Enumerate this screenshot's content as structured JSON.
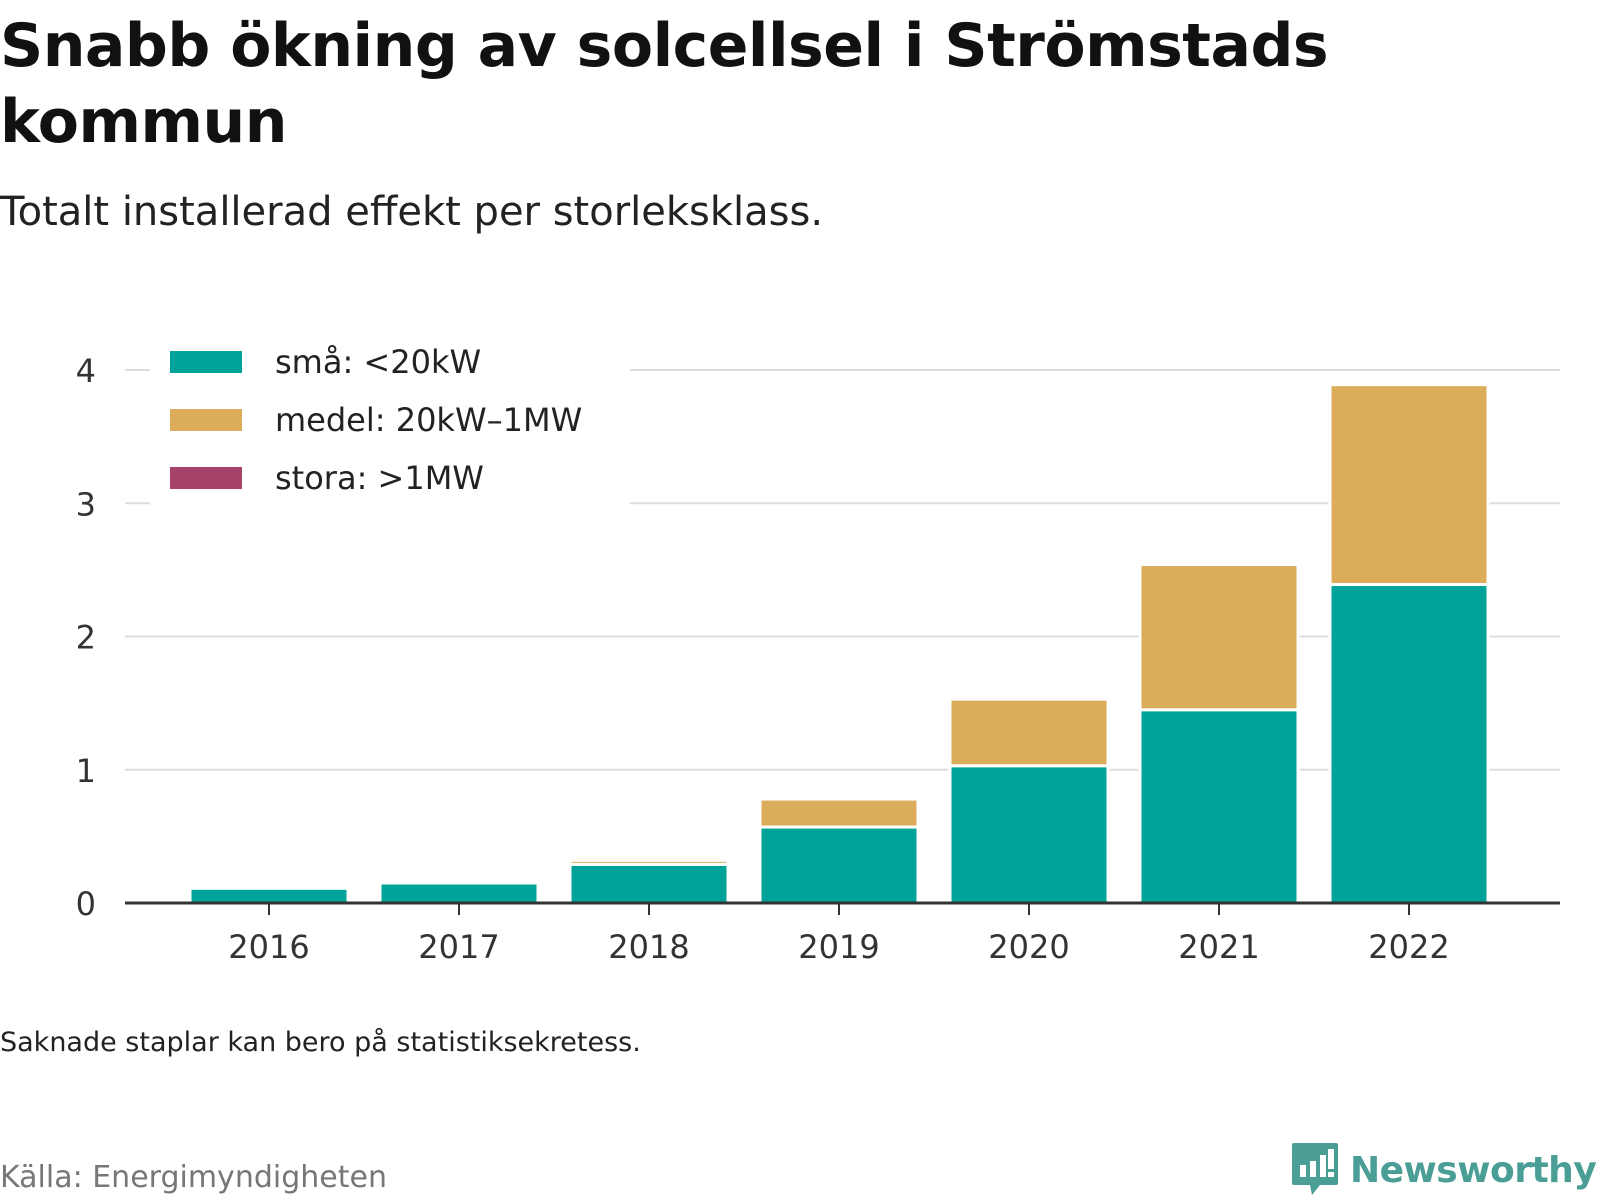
{
  "header": {
    "title": "Snabb ökning av solcellsel i Strömstads kommun",
    "subtitle": "Totalt installerad effekt per storleksklass."
  },
  "footer": {
    "note": "Saknade staplar kan bero på statistiksekretess.",
    "source": "Källa: Energimyndigheten",
    "brand": "Newsworthy",
    "brand_color": "#4a9e96"
  },
  "chart_data": {
    "type": "bar",
    "stacked": true,
    "title": "Snabb ökning av solcellsel i Strömstads kommun",
    "subtitle": "Totalt installerad effekt per storleksklass.",
    "xlabel": "",
    "ylabel": "",
    "categories": [
      "2016",
      "2017",
      "2018",
      "2019",
      "2020",
      "2021",
      "2022"
    ],
    "series": [
      {
        "name": "små: <20kW",
        "color": "#00a39a",
        "values": [
          0.11,
          0.15,
          0.29,
          0.57,
          1.03,
          1.45,
          2.39
        ]
      },
      {
        "name": "medel: 20kW–1MW",
        "color": "#dbad5b",
        "values": [
          0.0,
          0.0,
          0.03,
          0.21,
          0.5,
          1.09,
          1.5
        ]
      },
      {
        "name": "stora: >1MW",
        "color": "#a8426a",
        "values": [
          0,
          0,
          0,
          0,
          0,
          0,
          0
        ]
      }
    ],
    "ylim": [
      0,
      4
    ],
    "yticks": [
      0,
      1,
      2,
      3,
      4
    ],
    "grid": true,
    "legend_position": "top-left"
  }
}
